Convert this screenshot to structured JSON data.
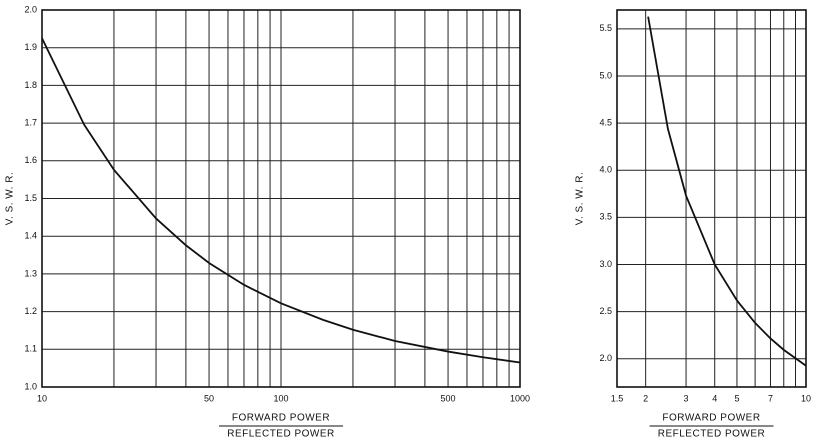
{
  "chart_data": [
    {
      "type": "line",
      "xlabel": [
        "FORWARD   POWER",
        "REFLECTED   POWER"
      ],
      "ylabel": "V. S. W. R.",
      "log_x": true,
      "grid": true,
      "xlim": [
        10,
        1000
      ],
      "ylim": [
        1.0,
        2.0
      ],
      "xticks": [
        10,
        50,
        100,
        500,
        1000
      ],
      "x_minor_grid": [
        20,
        30,
        40,
        60,
        70,
        80,
        90,
        200,
        300,
        400,
        600,
        700,
        800,
        900
      ],
      "yticks": [
        {
          "value": 1.0,
          "label": "1.0"
        },
        1.1,
        1.2,
        1.3,
        1.4,
        1.5,
        1.6,
        1.7,
        1.8,
        1.9,
        {
          "value": 2.0,
          "label": "2.0"
        }
      ],
      "series": [
        {
          "color": "#111111",
          "x": [
            10,
            15,
            20,
            30,
            40,
            50,
            70,
            100,
            150,
            200,
            300,
            500,
            700,
            1000
          ],
          "values": [
            1.925,
            1.696,
            1.576,
            1.447,
            1.376,
            1.329,
            1.271,
            1.222,
            1.178,
            1.152,
            1.122,
            1.094,
            1.079,
            1.065
          ]
        }
      ]
    },
    {
      "type": "line",
      "xlabel": [
        "FORWARD  POWER",
        "REFLECTED  POWER"
      ],
      "ylabel": "V. S. W. R.",
      "log_x": true,
      "grid": true,
      "xlim": [
        1.5,
        10
      ],
      "ylim": [
        1.7,
        5.7
      ],
      "xticks": [
        1.5,
        2,
        3,
        4,
        5,
        7,
        10
      ],
      "x_minor_grid": [
        6,
        8,
        9
      ],
      "yticks": [
        {
          "value": 2.0,
          "label": "2.0"
        },
        2.5,
        {
          "value": 3.0,
          "label": "3.0"
        },
        3.5,
        {
          "value": 4.0,
          "label": "4.0"
        },
        4.5,
        {
          "value": 5.0,
          "label": "5.0"
        },
        5.5
      ],
      "series": [
        {
          "color": "#111111",
          "x": [
            2.05,
            2.5,
            3,
            4,
            5,
            6,
            7,
            8,
            10
          ],
          "values": [
            5.63,
            4.44,
            3.73,
            3.0,
            2.618,
            2.38,
            2.215,
            2.094,
            1.925
          ]
        }
      ]
    }
  ]
}
